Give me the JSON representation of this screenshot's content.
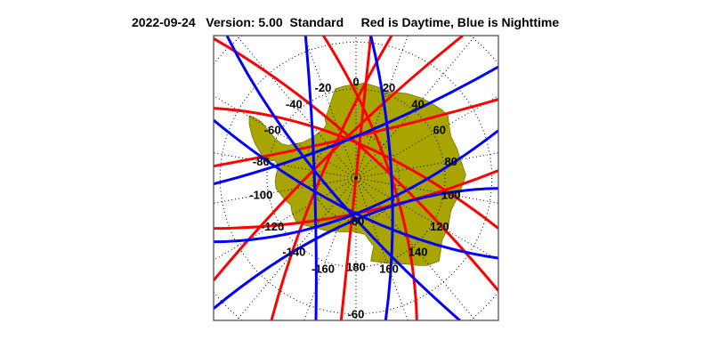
{
  "title": {
    "date": "2022-09-24",
    "version": "Version: 5.00",
    "mode": "Standard",
    "legend": "Red is Daytime, Blue is Nighttime"
  },
  "map": {
    "projection": "south polar stereographic",
    "land_color": "#a8a400",
    "day_color": "#ff0000",
    "night_color": "#0000ff",
    "longitude_labels": [
      "0",
      "20",
      "40",
      "60",
      "80",
      "100",
      "120",
      "140",
      "160",
      "180",
      "-160",
      "-140",
      "-120",
      "-100",
      "-80",
      "-60",
      "-40",
      "-20"
    ],
    "latitude_labels": [
      "-80",
      "-60"
    ]
  }
}
